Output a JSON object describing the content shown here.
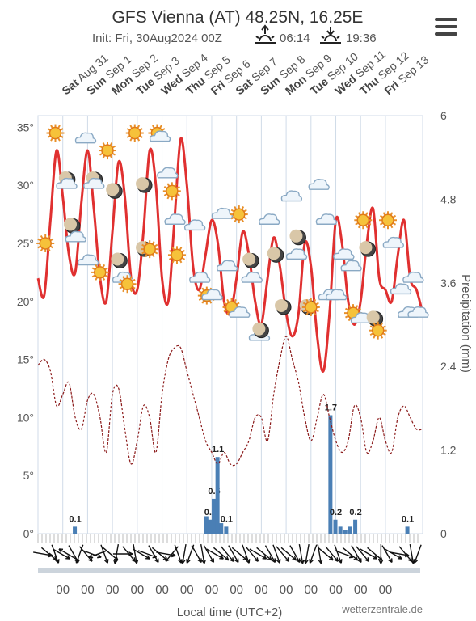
{
  "header": {
    "title": "GFS Vienna (AT) 48.25N, 16.25E",
    "init": "Init: Fri, 30Aug2024 00Z",
    "sunrise": "06:14",
    "sunset": "19:36",
    "sunrise_icon": "sunrise-icon",
    "sunset_icon": "sunset-icon",
    "menu_icon": "hamburger-menu-icon"
  },
  "footer": {
    "xlabel": "Local time (UTC+2)",
    "credit": "wetterzentrale.de",
    "hour_label": "00"
  },
  "colors": {
    "temperature": "#e03030",
    "dewpoint": "#8b1a1a",
    "precip": "#4a7fb5",
    "grid": "#d0dbe8"
  },
  "chart_data": {
    "type": "line",
    "days": [
      {
        "dow": "Sat",
        "date": "Aug 31"
      },
      {
        "dow": "Sun",
        "date": "Sep 1"
      },
      {
        "dow": "Mon",
        "date": "Sep 2"
      },
      {
        "dow": "Tue",
        "date": "Sep 3"
      },
      {
        "dow": "Wed",
        "date": "Sep 4"
      },
      {
        "dow": "Thu",
        "date": "Sep 5"
      },
      {
        "dow": "Fri",
        "date": "Sep 6"
      },
      {
        "dow": "Sat",
        "date": "Sep 7"
      },
      {
        "dow": "Sun",
        "date": "Sep 8"
      },
      {
        "dow": "Mon",
        "date": "Sep 9"
      },
      {
        "dow": "Tue",
        "date": "Sep 10"
      },
      {
        "dow": "Wed",
        "date": "Sep 11"
      },
      {
        "dow": "Thu",
        "date": "Sep 12"
      },
      {
        "dow": "Fri",
        "date": "Sep 13"
      }
    ],
    "y_left_ticks": [
      "35°",
      "30°",
      "25°",
      "20°",
      "15°",
      "10°",
      "5°",
      "0°"
    ],
    "y_left_range": [
      0,
      36
    ],
    "y_right_label": "Precipitation (mm)",
    "y_right_ticks": [
      "6",
      "4.8",
      "3.6",
      "2.4",
      "1.2",
      "0"
    ],
    "y_right_range": [
      0,
      6
    ],
    "x_range_days": [
      0,
      15.5
    ],
    "temperature": {
      "x": [
        0,
        0.25,
        0.5,
        0.75,
        1,
        1.25,
        1.5,
        1.75,
        2,
        2.25,
        2.5,
        2.75,
        3,
        3.25,
        3.5,
        3.75,
        4,
        4.25,
        4.5,
        4.75,
        5,
        5.25,
        5.5,
        5.75,
        6,
        6.25,
        6.5,
        6.75,
        7,
        7.25,
        7.5,
        7.75,
        8,
        8.25,
        8.5,
        8.75,
        9,
        9.25,
        9.5,
        9.75,
        10,
        10.25,
        10.5,
        10.75,
        11,
        11.25,
        11.5,
        11.75,
        12,
        12.25,
        12.5,
        12.75,
        13,
        13.25,
        13.5,
        13.75,
        14,
        14.25,
        14.5,
        14.75,
        15,
        15.25,
        15.5
      ],
      "y": [
        22,
        20.5,
        27,
        33,
        29,
        24,
        22.5,
        28.5,
        33,
        28,
        22,
        20,
        26,
        32,
        29,
        22,
        21,
        26,
        33,
        30,
        22,
        20,
        27,
        34,
        30,
        23,
        21,
        24,
        27,
        25,
        20,
        19,
        22,
        26,
        24,
        20,
        18,
        22,
        25.5,
        23,
        19,
        17,
        19,
        25,
        23,
        17,
        14,
        19,
        27,
        25,
        20,
        18,
        20,
        25,
        28,
        22,
        21,
        20,
        24,
        27,
        22,
        21,
        19
      ]
    },
    "dewpoint": {
      "x": [
        0,
        0.25,
        0.5,
        0.75,
        1,
        1.25,
        1.5,
        1.75,
        2,
        2.25,
        2.5,
        2.75,
        3,
        3.25,
        3.5,
        3.75,
        4,
        4.25,
        4.5,
        4.75,
        5,
        5.25,
        5.5,
        5.75,
        6,
        6.25,
        6.5,
        6.75,
        7,
        7.25,
        7.5,
        7.75,
        8,
        8.25,
        8.5,
        8.75,
        9,
        9.25,
        9.5,
        9.75,
        10,
        10.25,
        10.5,
        10.75,
        11,
        11.25,
        11.5,
        11.75,
        12,
        12.25,
        12.5,
        12.75,
        13,
        13.25,
        13.5,
        13.75,
        14,
        14.25,
        14.5,
        14.75,
        15,
        15.25,
        15.5
      ],
      "y": [
        14.5,
        15,
        14,
        11,
        12,
        13,
        10,
        9,
        11.5,
        12,
        10,
        7,
        12,
        12.5,
        9,
        6,
        8,
        11,
        10,
        7,
        12,
        15,
        16,
        16,
        14,
        12,
        10,
        8,
        7,
        6,
        7,
        6,
        6,
        7,
        8,
        10,
        10,
        8,
        12,
        15,
        17,
        15,
        13,
        10,
        8,
        10,
        12,
        10,
        8,
        7,
        8,
        11,
        10,
        7,
        8,
        10,
        8,
        7,
        10,
        11,
        10,
        9,
        9
      ]
    },
    "precip_bars": [
      {
        "x": 1.5,
        "value": 0.1,
        "label": "0.1"
      },
      {
        "x": 6.8,
        "value": 0.25,
        "label": ""
      },
      {
        "x": 6.95,
        "value": 0.2,
        "label": "0.2"
      },
      {
        "x": 7.1,
        "value": 0.5,
        "label": "0.5"
      },
      {
        "x": 7.25,
        "value": 1.1,
        "label": "1.1"
      },
      {
        "x": 7.4,
        "value": 0.15,
        "label": ""
      },
      {
        "x": 7.6,
        "value": 0.1,
        "label": "0.1"
      },
      {
        "x": 11.8,
        "value": 1.7,
        "label": "1.7"
      },
      {
        "x": 12.0,
        "value": 0.2,
        "label": "0.2"
      },
      {
        "x": 12.2,
        "value": 0.1,
        "label": ""
      },
      {
        "x": 12.4,
        "value": 0.05,
        "label": ""
      },
      {
        "x": 12.6,
        "value": 0.1,
        "label": ""
      },
      {
        "x": 12.8,
        "value": 0.2,
        "label": "0.2"
      },
      {
        "x": 14.9,
        "value": 0.1,
        "label": "0.1"
      }
    ],
    "weather_icons": [
      {
        "x": 0.3,
        "temp": 25,
        "kind": "sun"
      },
      {
        "x": 0.7,
        "temp": 34.5,
        "kind": "sun"
      },
      {
        "x": 1.2,
        "temp": 30.5,
        "kind": "moon-cloud"
      },
      {
        "x": 1.4,
        "temp": 26.5,
        "kind": "moon"
      },
      {
        "x": 1.5,
        "temp": 25.5,
        "kind": "cloud"
      },
      {
        "x": 1.9,
        "temp": 34,
        "kind": "cloud"
      },
      {
        "x": 2.0,
        "temp": 23.5,
        "kind": "cloud"
      },
      {
        "x": 2.3,
        "temp": 30.5,
        "kind": "moon-cloud"
      },
      {
        "x": 2.5,
        "temp": 22.5,
        "kind": "sun"
      },
      {
        "x": 2.8,
        "temp": 33,
        "kind": "sun"
      },
      {
        "x": 3.1,
        "temp": 29.5,
        "kind": "moon"
      },
      {
        "x": 3.3,
        "temp": 23.5,
        "kind": "moon"
      },
      {
        "x": 3.4,
        "temp": 22,
        "kind": "cloud"
      },
      {
        "x": 3.6,
        "temp": 21.5,
        "kind": "sun"
      },
      {
        "x": 3.9,
        "temp": 34.5,
        "kind": "sun"
      },
      {
        "x": 4.3,
        "temp": 30,
        "kind": "moon"
      },
      {
        "x": 4.3,
        "temp": 24.5,
        "kind": "moon"
      },
      {
        "x": 4.5,
        "temp": 24.5,
        "kind": "sun"
      },
      {
        "x": 4.8,
        "temp": 34.5,
        "kind": "sun-cloud"
      },
      {
        "x": 5.2,
        "temp": 31,
        "kind": "cloud"
      },
      {
        "x": 5.4,
        "temp": 29.5,
        "kind": "sun"
      },
      {
        "x": 5.5,
        "temp": 27,
        "kind": "cloud"
      },
      {
        "x": 5.6,
        "temp": 24,
        "kind": "sun"
      },
      {
        "x": 6.3,
        "temp": 26.5,
        "kind": "cloud"
      },
      {
        "x": 6.5,
        "temp": 22,
        "kind": "cloud"
      },
      {
        "x": 6.8,
        "temp": 20.5,
        "kind": "sun"
      },
      {
        "x": 7.0,
        "temp": 20.5,
        "kind": "cloud"
      },
      {
        "x": 7.4,
        "temp": 27.5,
        "kind": "cloud"
      },
      {
        "x": 7.6,
        "temp": 23,
        "kind": "cloud"
      },
      {
        "x": 7.8,
        "temp": 19.5,
        "kind": "sun"
      },
      {
        "x": 8.1,
        "temp": 27.5,
        "kind": "sun"
      },
      {
        "x": 8.1,
        "temp": 19,
        "kind": "cloud"
      },
      {
        "x": 8.6,
        "temp": 23.5,
        "kind": "moon"
      },
      {
        "x": 8.6,
        "temp": 22,
        "kind": "cloud"
      },
      {
        "x": 8.9,
        "temp": 17,
        "kind": "cloud"
      },
      {
        "x": 9.0,
        "temp": 17.5,
        "kind": "moon"
      },
      {
        "x": 9.3,
        "temp": 27,
        "kind": "cloud"
      },
      {
        "x": 9.6,
        "temp": 24,
        "kind": "moon"
      },
      {
        "x": 9.9,
        "temp": 19.5,
        "kind": "moon"
      },
      {
        "x": 10.2,
        "temp": 29,
        "kind": "cloud"
      },
      {
        "x": 10.5,
        "temp": 25.5,
        "kind": "moon"
      },
      {
        "x": 10.4,
        "temp": 24,
        "kind": "cloud"
      },
      {
        "x": 10.9,
        "temp": 19.5,
        "kind": "moon"
      },
      {
        "x": 11.0,
        "temp": 19.5,
        "kind": "sun"
      },
      {
        "x": 11.3,
        "temp": 30,
        "kind": "cloud"
      },
      {
        "x": 11.6,
        "temp": 27,
        "kind": "cloud"
      },
      {
        "x": 11.7,
        "temp": 20.5,
        "kind": "cloud"
      },
      {
        "x": 12.0,
        "temp": 20.5,
        "kind": "cloud"
      },
      {
        "x": 12.3,
        "temp": 24,
        "kind": "cloud"
      },
      {
        "x": 12.6,
        "temp": 23,
        "kind": "cloud"
      },
      {
        "x": 12.7,
        "temp": 19,
        "kind": "sun"
      },
      {
        "x": 13.0,
        "temp": 18.5,
        "kind": "cloud"
      },
      {
        "x": 13.1,
        "temp": 27,
        "kind": "sun"
      },
      {
        "x": 13.3,
        "temp": 24.5,
        "kind": "moon"
      },
      {
        "x": 13.6,
        "temp": 18.5,
        "kind": "moon"
      },
      {
        "x": 13.7,
        "temp": 17.5,
        "kind": "sun"
      },
      {
        "x": 14.1,
        "temp": 27,
        "kind": "sun"
      },
      {
        "x": 14.3,
        "temp": 25,
        "kind": "cloud"
      },
      {
        "x": 14.6,
        "temp": 21,
        "kind": "cloud"
      },
      {
        "x": 14.9,
        "temp": 19,
        "kind": "cloud"
      },
      {
        "x": 15.1,
        "temp": 22,
        "kind": "cloud"
      },
      {
        "x": 15.3,
        "temp": 19,
        "kind": "cloud"
      }
    ],
    "wind_directions_deg": [
      100,
      130,
      160,
      120,
      300,
      150,
      200,
      140,
      110,
      250,
      160,
      130,
      190,
      90,
      140,
      170,
      120,
      110,
      150,
      130,
      100,
      220,
      160,
      190,
      200,
      150,
      170,
      150,
      120,
      130,
      140,
      150,
      130,
      160,
      140,
      120,
      130,
      150,
      160,
      140,
      130,
      150,
      170,
      190,
      200,
      170,
      130,
      140,
      160,
      110,
      130,
      150,
      140,
      120,
      130,
      180,
      150,
      120,
      100,
      140,
      170,
      200
    ]
  }
}
